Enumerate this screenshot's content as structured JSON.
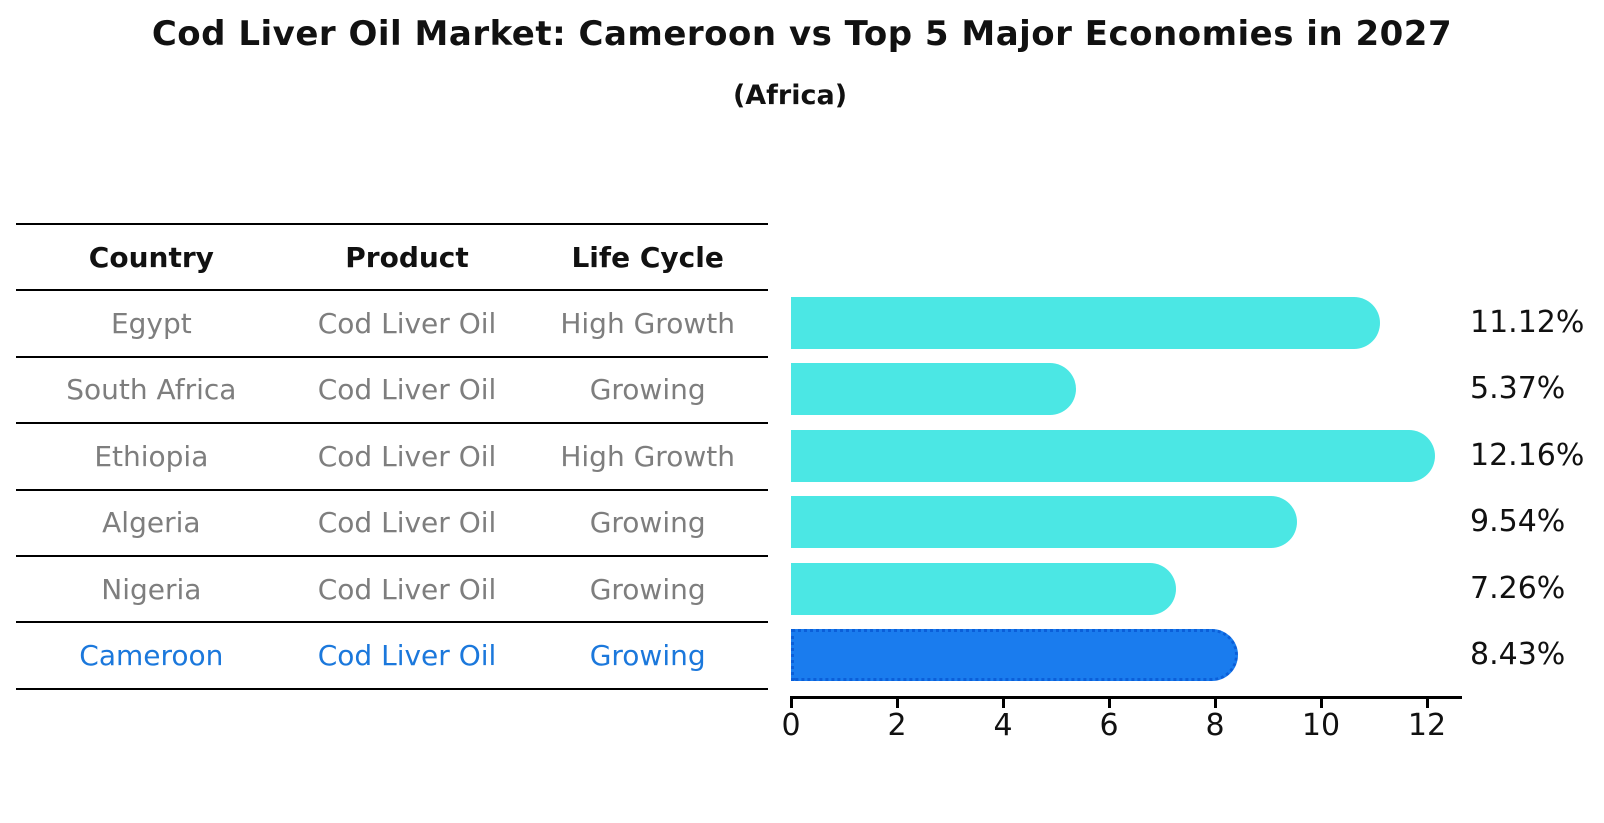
{
  "title": "Cod Liver Oil Market: Cameroon vs Top 5 Major Economies in 2027",
  "subtitle": "(Africa)",
  "table": {
    "headers": [
      "Country",
      "Product",
      "Life Cycle"
    ],
    "rows": [
      {
        "country": "Egypt",
        "product": "Cod Liver Oil",
        "life_cycle": "High Growth",
        "highlight": false
      },
      {
        "country": "South Africa",
        "product": "Cod Liver Oil",
        "life_cycle": "Growing",
        "highlight": false
      },
      {
        "country": "Ethiopia",
        "product": "Cod Liver Oil",
        "life_cycle": "High Growth",
        "highlight": false
      },
      {
        "country": "Algeria",
        "product": "Cod Liver Oil",
        "life_cycle": "Growing",
        "highlight": false
      },
      {
        "country": "Nigeria",
        "product": "Cod Liver Oil",
        "life_cycle": "Growing",
        "highlight": true
      }
    ],
    "highlight_row": {
      "country": "Cameroon",
      "product": "Cod Liver Oil",
      "life_cycle": "Growing"
    }
  },
  "chart_data": {
    "type": "bar",
    "orientation": "horizontal",
    "categories": [
      "Egypt",
      "South Africa",
      "Ethiopia",
      "Algeria",
      "Nigeria",
      "Cameroon"
    ],
    "values": [
      11.12,
      5.37,
      12.16,
      9.54,
      7.26,
      8.43
    ],
    "value_labels": [
      "11.12%",
      "5.37%",
      "12.16%",
      "9.54%",
      "7.26%",
      "8.43%"
    ],
    "highlight_index": 5,
    "xticks": [
      0,
      2,
      4,
      6,
      8,
      10,
      12
    ],
    "xlim": [
      0,
      12.68
    ],
    "grid": false,
    "legend": false,
    "bar_color": "#4be7e4",
    "highlight_bar_color": "#1a7cee",
    "highlight_edge_color": "#0b5fd9",
    "title": "Cod Liver Oil Market: Cameroon vs Top 5 Major Economies in 2027",
    "subtitle": "(Africa)",
    "xlabel": "",
    "ylabel": ""
  },
  "colors": {
    "bar": "#4be7e4",
    "highlight_bar": "#1a7cee",
    "highlight_text": "#1b78dc",
    "body_text": "#7e7e7e",
    "heading_text": "#111111"
  }
}
